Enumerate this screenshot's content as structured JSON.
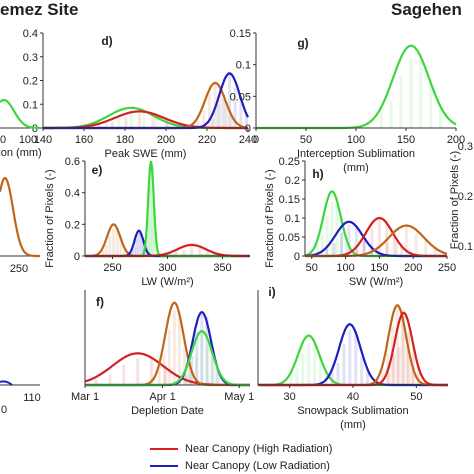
{
  "figure": {
    "site_left": "emez Site",
    "site_right": "Sagehen"
  },
  "legend": [
    {
      "label": "Near Canopy (High Radiation)",
      "color": "#d62020"
    },
    {
      "label": "Near Canopy (Low Radiation)",
      "color": "#1f1fc0"
    }
  ],
  "colors": {
    "green": "#3dd63d",
    "brown": "#c0651a",
    "red": "#d62020",
    "blue": "#1f1fc0"
  },
  "chart_data": [
    {
      "type": "line",
      "panel": "left-top-partial",
      "x_ticks": [
        "0",
        "100"
      ],
      "xlabel": "ion (mm)",
      "ylabel": "",
      "series": [
        {
          "color": "green",
          "curves": [
            [
              80,
              0.02,
              12
            ]
          ]
        }
      ]
    },
    {
      "type": "line",
      "panel": "d)",
      "xlabel": "Peak SWE (mm)",
      "ylabel": "",
      "xlim": [
        140,
        240
      ],
      "ylim": [
        0,
        0.4
      ],
      "x_ticks": [
        140,
        160,
        180,
        200,
        220,
        240
      ],
      "y_ticks": [
        0,
        0.1,
        0.2,
        0.3,
        0.4
      ],
      "series": [
        {
          "color": "green",
          "curves": [
            [
              183,
              0.085,
              11
            ]
          ]
        },
        {
          "color": "red",
          "curves": [
            [
              187,
              0.07,
              12
            ]
          ]
        },
        {
          "color": "brown",
          "curves": [
            [
              224,
              0.19,
              5
            ]
          ]
        },
        {
          "color": "blue",
          "curves": [
            [
              231,
              0.23,
              5
            ]
          ]
        }
      ]
    },
    {
      "type": "line",
      "panel": "g)",
      "xlabel": "Interception Sublimation",
      "xlabel2": "(mm)",
      "ylabel": "",
      "xlim": [
        0,
        200
      ],
      "ylim": [
        0,
        0.15
      ],
      "x_ticks": [
        0,
        50,
        100,
        150,
        200
      ],
      "y_ticks": [
        0,
        0.05,
        0.1,
        0.15
      ],
      "series": [
        {
          "color": "green",
          "curves": [
            [
              155,
              0.13,
              18
            ]
          ]
        }
      ]
    },
    {
      "type": "line",
      "panel": "left-mid-partial",
      "x_ticks": [
        "250"
      ],
      "xlabel": "",
      "ylabel": "",
      "series": [
        {
          "color": "brown",
          "curves": [
            [
              215,
              0.2,
              20
            ]
          ]
        }
      ]
    },
    {
      "type": "line",
      "panel": "e)",
      "xlabel": "LW (W/m²)",
      "ylabel": "Fraction of Pixels (-)",
      "xlim": [
        225,
        375
      ],
      "ylim": [
        0,
        0.6
      ],
      "x_ticks": [
        250,
        300,
        350
      ],
      "y_ticks": [
        0,
        0.2,
        0.4,
        0.6
      ],
      "series": [
        {
          "color": "brown",
          "curves": [
            [
              251,
              0.2,
              6
            ]
          ]
        },
        {
          "color": "blue",
          "curves": [
            [
              274,
              0.16,
              4
            ]
          ]
        },
        {
          "color": "green",
          "curves": [
            [
              285,
              0.6,
              2.5
            ]
          ]
        },
        {
          "color": "red",
          "curves": [
            [
              322,
              0.07,
              13
            ]
          ]
        }
      ]
    },
    {
      "type": "line",
      "panel": "h)",
      "xlabel": "SW (W/m²)",
      "ylabel": "Fraction of Pixels (-)",
      "xlim": [
        40,
        250
      ],
      "ylim": [
        0,
        0.25
      ],
      "x_ticks": [
        50,
        100,
        150,
        200,
        250
      ],
      "y_ticks": [
        0,
        0.05,
        0.1,
        0.15,
        0.2,
        0.25
      ],
      "series": [
        {
          "color": "green",
          "curves": [
            [
              80,
              0.17,
              13
            ]
          ]
        },
        {
          "color": "blue",
          "curves": [
            [
              105,
              0.09,
              20
            ]
          ]
        },
        {
          "color": "red",
          "curves": [
            [
              150,
              0.1,
              20
            ]
          ]
        },
        {
          "color": "brown",
          "curves": [
            [
              190,
              0.08,
              26
            ]
          ]
        }
      ]
    },
    {
      "type": "line",
      "panel": "left-bottom-partial",
      "x_ticks": [
        "110"
      ],
      "xlabel": "",
      "ylabel": "",
      "series": []
    },
    {
      "type": "line",
      "panel": "f)",
      "xlabel": "Depletion Date",
      "ylabel": "",
      "x_ticks": [
        "Mar 1",
        "Apr 1",
        "May 1"
      ],
      "xlim": [
        -5,
        67
      ],
      "ylim": [
        0,
        0.3
      ],
      "series": [
        {
          "color": "red",
          "curves": [
            [
              18,
              0.1,
              11
            ]
          ]
        },
        {
          "color": "brown",
          "curves": [
            [
              34,
              0.26,
              4
            ]
          ]
        },
        {
          "color": "blue",
          "curves": [
            [
              46,
              0.23,
              4
            ]
          ]
        },
        {
          "color": "green",
          "curves": [
            [
              46,
              0.17,
              4.5
            ]
          ]
        }
      ]
    },
    {
      "type": "line",
      "panel": "i)",
      "xlabel": "Snowpack Sublimation",
      "xlabel2": "(mm)",
      "ylabel": "",
      "xlim": [
        25,
        55
      ],
      "ylim": [
        0,
        0.25
      ],
      "x_ticks": [
        30,
        40,
        50
      ],
      "y_ticks": [],
      "series": [
        {
          "color": "green",
          "curves": [
            [
              33,
              0.13,
              1.7
            ]
          ]
        },
        {
          "color": "blue",
          "curves": [
            [
              39.5,
              0.16,
              1.7
            ]
          ]
        },
        {
          "color": "brown",
          "curves": [
            [
              47,
              0.21,
              1.4
            ]
          ]
        },
        {
          "color": "red",
          "curves": [
            [
              48,
              0.19,
              1.4
            ]
          ]
        }
      ]
    },
    {
      "type": "line",
      "panel": "right-partial",
      "x_ticks": [],
      "xlabel": "",
      "y_ticks": [
        "0.3",
        "0.2",
        "0.1"
      ],
      "ylabel": "Fraction of Pixels (-)",
      "series": []
    }
  ]
}
